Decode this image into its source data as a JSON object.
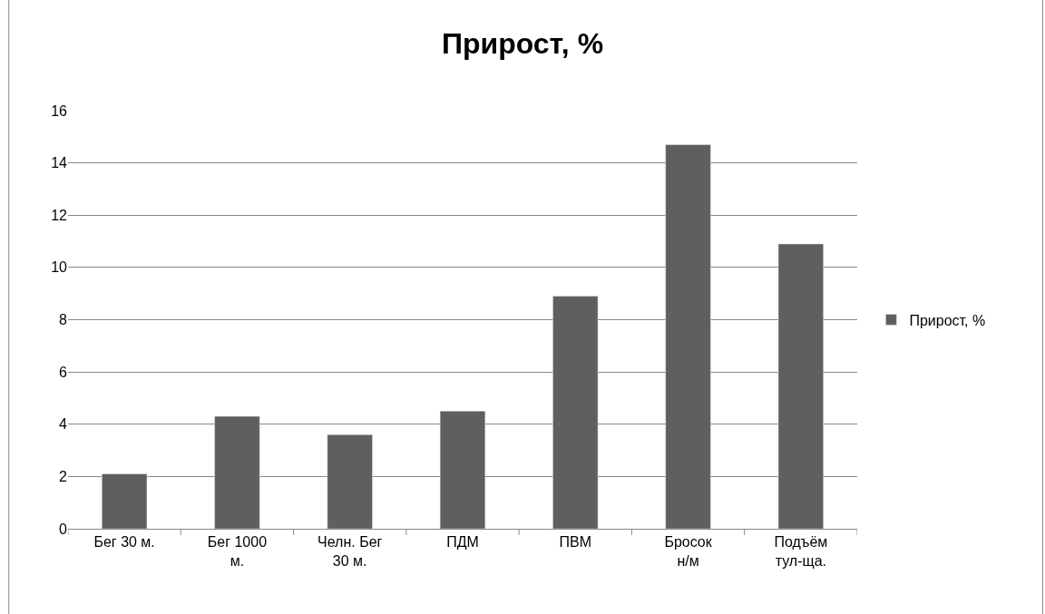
{
  "chart_data": {
    "type": "bar",
    "title": "Прирост, %",
    "categories": [
      "Бег 30 м.",
      "Бег 1000\nм.",
      "Челн. Бег\n30 м.",
      "ПДМ",
      "ПВМ",
      "Бросок\nн/м",
      "Подъём\nтул-ща."
    ],
    "series": [
      {
        "name": "Прирост, %",
        "color": "#5f5f5f",
        "values": [
          2.1,
          4.3,
          3.6,
          4.5,
          8.9,
          14.7,
          10.9
        ]
      }
    ],
    "ylim": [
      0,
      16
    ],
    "yticks": [
      0,
      2,
      4,
      6,
      8,
      10,
      12,
      14,
      16
    ],
    "grid": "y",
    "legend": "right"
  }
}
